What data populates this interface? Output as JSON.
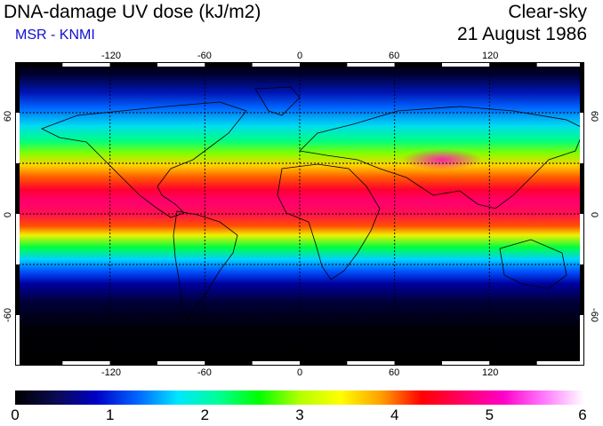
{
  "header": {
    "title": "DNA-damage UV dose (kJ/m2)",
    "subtitle": "MSR - KNMI",
    "sky_condition": "Clear-sky",
    "date": "21 August 1986"
  },
  "map": {
    "projection": "equirectangular",
    "lon_range": [
      -180,
      180
    ],
    "lat_range": [
      -90,
      90
    ],
    "graticule": "dashed",
    "lon_ticks": [
      "-120",
      "-60",
      "0",
      "60",
      "120"
    ],
    "lat_ticks": [
      "60",
      "0",
      "-60"
    ],
    "lon_tick_values": [
      -120,
      -60,
      0,
      60,
      120
    ],
    "lat_tick_values": [
      60,
      0,
      -60
    ]
  },
  "colorbar": {
    "labels": [
      "0",
      "1",
      "2",
      "3",
      "4",
      "5",
      "6"
    ],
    "min": 0,
    "max": 6,
    "colors": [
      "#000000",
      "#0a0a50",
      "#0000c8",
      "#0064ff",
      "#00e6ff",
      "#00ff96",
      "#00ff00",
      "#b4ff00",
      "#ffff00",
      "#ffa000",
      "#ff0000",
      "#ff0064",
      "#ff00c8",
      "#ff78ff",
      "#ffffff"
    ]
  }
}
